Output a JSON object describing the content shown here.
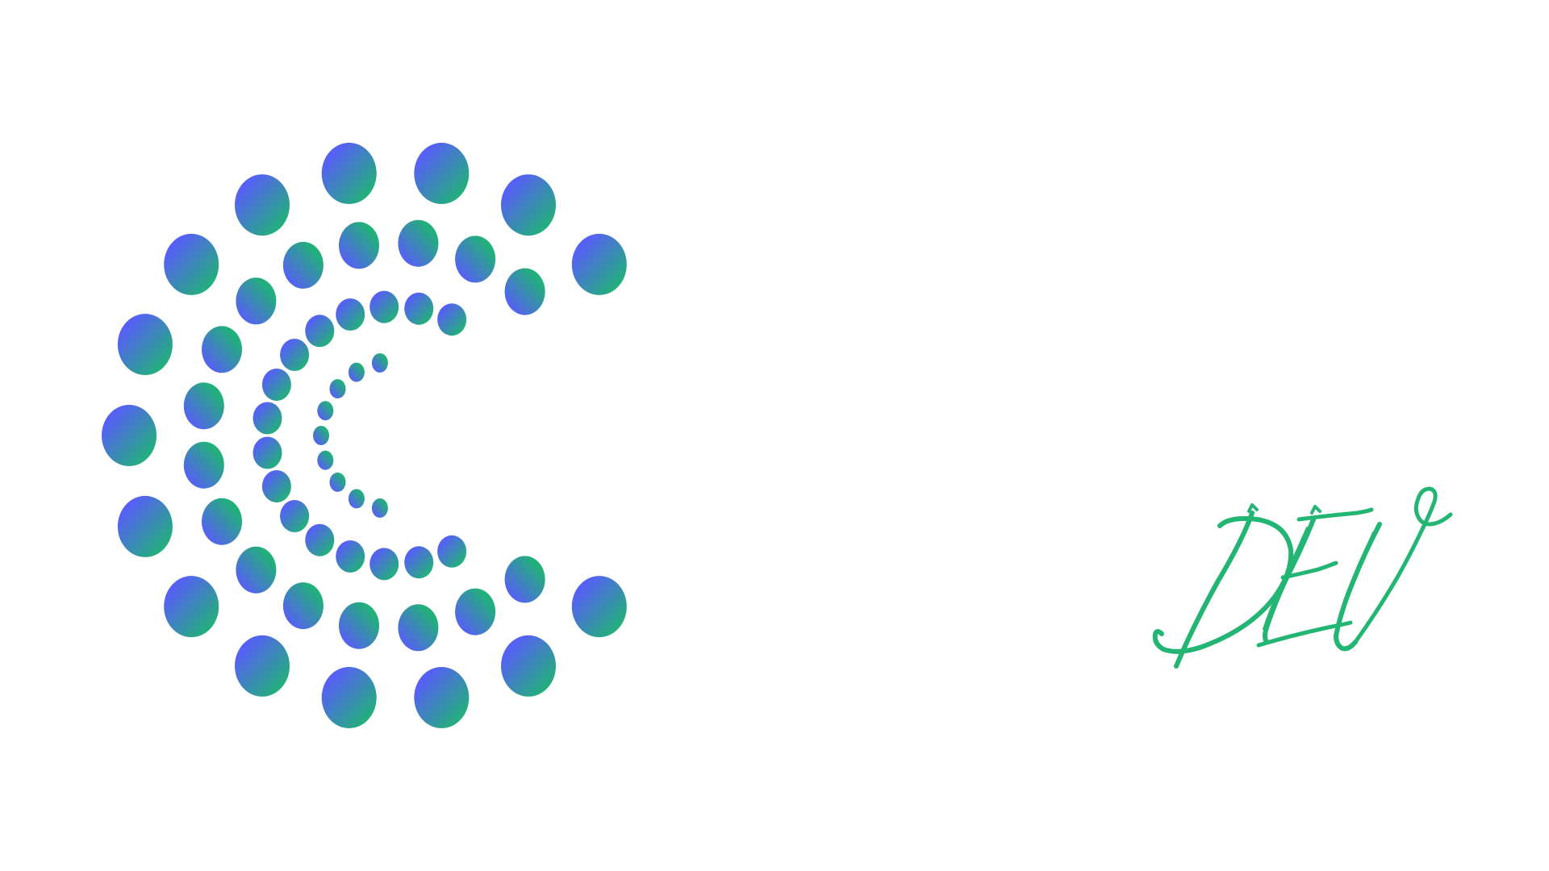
{
  "logo": {
    "mark_icon": "dotted-c-icon",
    "wordmark_text": "DEV",
    "colors": {
      "gradient_blue": "#5561f2",
      "gradient_green": "#22b07a",
      "wordmark_green": "#22b573",
      "background": "#ffffff"
    }
  }
}
